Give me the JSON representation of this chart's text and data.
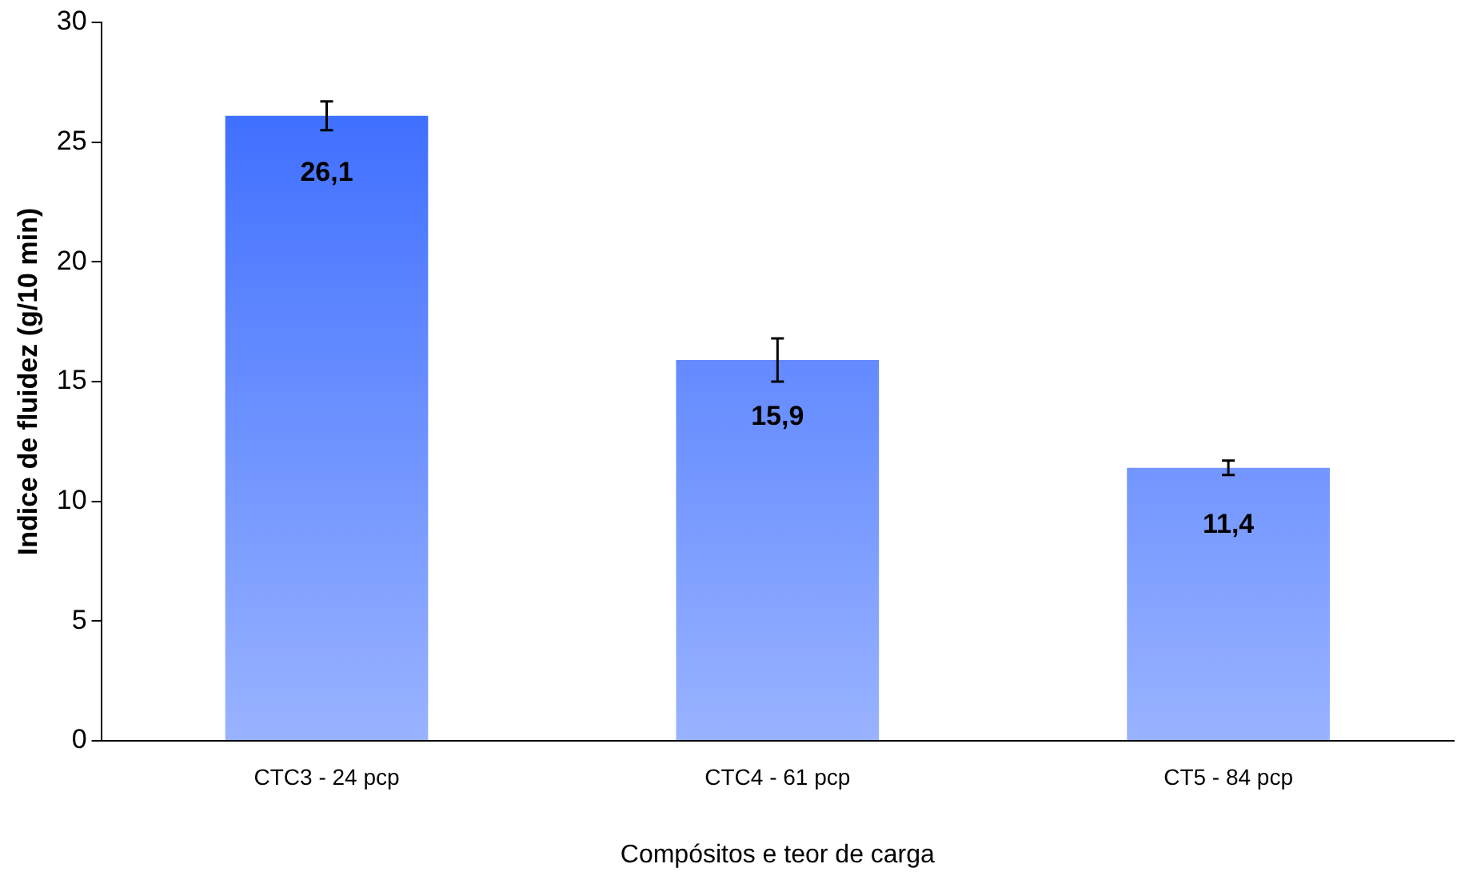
{
  "chart_data": {
    "type": "bar",
    "xlabel": "Compósitos e teor de carga",
    "ylabel": "Indice de fluidez (g/10 min)",
    "categories": [
      "CTC3 - 24 pcp",
      "CTC4 - 61 pcp",
      "CT5 - 84 pcp"
    ],
    "values": [
      26.1,
      15.9,
      11.4
    ],
    "errors": [
      0.6,
      0.9,
      0.3
    ],
    "value_labels": [
      "26,1",
      "15,9",
      "11,4"
    ],
    "color": "#3366ff",
    "ylim": [
      0,
      30
    ],
    "yticks": [
      0,
      5,
      10,
      15,
      20,
      25,
      30
    ],
    "grid": false,
    "legend": false
  }
}
